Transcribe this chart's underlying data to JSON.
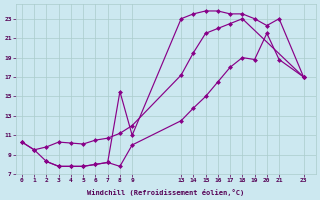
{
  "xlabel": "Windchill (Refroidissement éolien,°C)",
  "background_color": "#cce8f0",
  "grid_color": "#aacccc",
  "line_color": "#880088",
  "xlim": [
    -0.5,
    24.0
  ],
  "ylim": [
    7.0,
    24.5
  ],
  "xticks": [
    0,
    1,
    2,
    3,
    4,
    5,
    6,
    7,
    8,
    9,
    13,
    14,
    15,
    16,
    17,
    18,
    19,
    20,
    21,
    23
  ],
  "yticks": [
    7,
    9,
    11,
    13,
    15,
    17,
    19,
    21,
    23
  ],
  "curve_upper_x": [
    0,
    1,
    2,
    3,
    4,
    5,
    6,
    7,
    8,
    9,
    13,
    14,
    15,
    16,
    17,
    18,
    23
  ],
  "curve_upper_y": [
    10.3,
    9.5,
    9.8,
    10.3,
    10.2,
    10.1,
    10.5,
    10.7,
    11.2,
    12.0,
    17.2,
    19.5,
    21.5,
    22.0,
    22.5,
    23.0,
    17.0
  ],
  "curve_peak_x": [
    0,
    1,
    2,
    3,
    4,
    5,
    6,
    7,
    8,
    9,
    13,
    14,
    15,
    16,
    17,
    18,
    19,
    20,
    21,
    23
  ],
  "curve_peak_y": [
    10.3,
    9.5,
    8.3,
    7.8,
    7.8,
    7.8,
    8.0,
    8.2,
    15.5,
    11.0,
    23.0,
    23.5,
    23.8,
    23.8,
    23.5,
    23.5,
    23.0,
    22.3,
    23.0,
    17.0
  ],
  "curve_low_x": [
    2,
    3,
    4,
    5,
    6,
    7,
    8,
    9,
    13,
    14,
    15,
    16,
    17,
    18,
    19,
    20,
    21,
    23
  ],
  "curve_low_y": [
    8.3,
    7.8,
    7.8,
    7.8,
    8.0,
    8.2,
    7.8,
    10.0,
    12.5,
    13.8,
    15.0,
    16.5,
    18.0,
    19.0,
    18.8,
    21.5,
    18.8,
    17.0
  ]
}
